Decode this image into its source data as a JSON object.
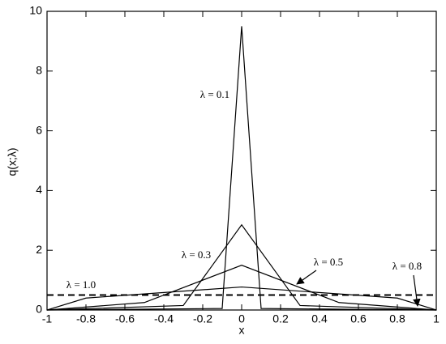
{
  "chart_data": {
    "type": "line",
    "xlabel": "x",
    "ylabel": "q(x;λ)",
    "xlim": [
      -1,
      1
    ],
    "ylim": [
      0,
      10
    ],
    "xticks": [
      -1,
      -0.8,
      -0.6,
      -0.4,
      -0.2,
      0,
      0.2,
      0.4,
      0.6,
      0.8,
      1
    ],
    "yticks": [
      0,
      2,
      4,
      6,
      8,
      10
    ],
    "grid": false,
    "series": [
      {
        "name": "λ = 0.1",
        "color": "#000000",
        "dashed": false,
        "x": [
          -1,
          -0.1,
          0,
          0.1,
          1
        ],
        "values": [
          0,
          0.05,
          9.5,
          0.05,
          0
        ]
      },
      {
        "name": "λ = 0.3",
        "color": "#000000",
        "dashed": false,
        "x": [
          -1,
          -0.3,
          0,
          0.3,
          1
        ],
        "values": [
          0,
          0.15,
          2.85,
          0.15,
          0
        ]
      },
      {
        "name": "λ = 0.5",
        "color": "#000000",
        "dashed": false,
        "x": [
          -1,
          -0.5,
          0,
          0.5,
          1
        ],
        "values": [
          0,
          0.25,
          1.5,
          0.25,
          0
        ]
      },
      {
        "name": "λ = 0.8",
        "color": "#000000",
        "dashed": false,
        "x": [
          -1,
          -0.8,
          0,
          0.8,
          1
        ],
        "values": [
          0,
          0.4,
          0.77,
          0.4,
          0
        ]
      },
      {
        "name": "λ = 1.0",
        "color": "#000000",
        "dashed": true,
        "x": [
          -1,
          1
        ],
        "values": [
          0.5,
          0.5
        ]
      }
    ]
  }
}
